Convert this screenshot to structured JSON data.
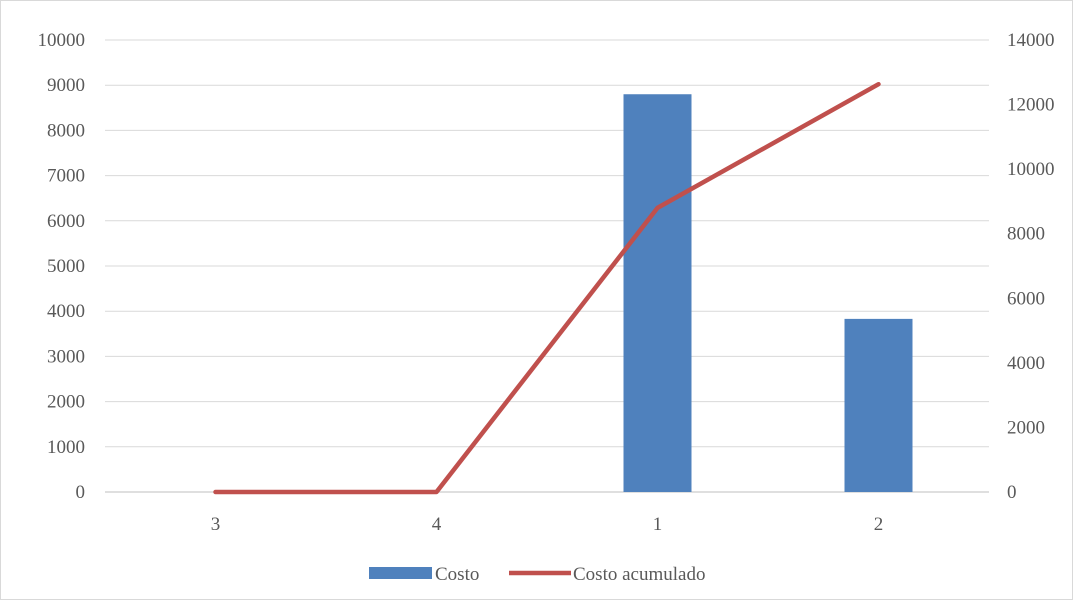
{
  "chart_data": {
    "type": "bar",
    "categories": [
      "3",
      "4",
      "1",
      "2"
    ],
    "series": [
      {
        "name": "Costo",
        "type": "bar",
        "axis": "left",
        "color": "#4f81bd",
        "values": [
          0,
          0,
          8800,
          3830
        ]
      },
      {
        "name": "Costo acumulado",
        "type": "line",
        "axis": "right",
        "color": "#c0504d",
        "values": [
          0,
          0,
          8800,
          12630
        ]
      }
    ],
    "y_left": {
      "ylim": [
        0,
        10000
      ],
      "ticks": [
        "0",
        "1000",
        "2000",
        "3000",
        "4000",
        "5000",
        "6000",
        "7000",
        "8000",
        "9000",
        "10000"
      ]
    },
    "y_right": {
      "ylim": [
        0,
        14000
      ],
      "ticks": [
        "0",
        "2000",
        "4000",
        "6000",
        "8000",
        "10000",
        "12000",
        "14000"
      ]
    },
    "title": "",
    "xlabel": "",
    "ylabel": "",
    "grid": true,
    "legend": "bottom"
  }
}
